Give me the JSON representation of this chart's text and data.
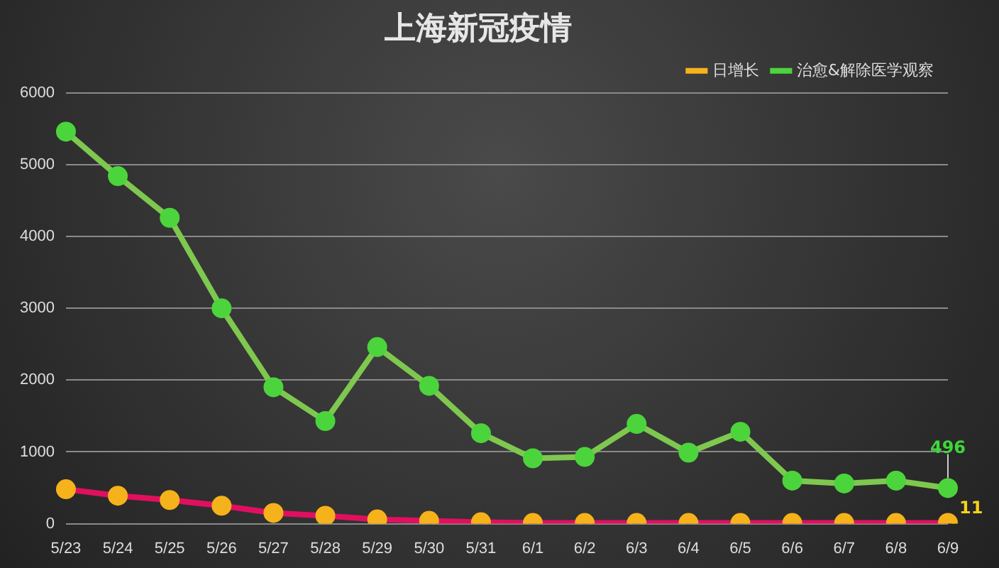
{
  "chart_data": {
    "type": "line",
    "title": "上海新冠疫情",
    "categories": [
      "5/23",
      "5/24",
      "5/25",
      "5/26",
      "5/27",
      "5/28",
      "5/29",
      "5/30",
      "5/31",
      "6/1",
      "6/2",
      "6/3",
      "6/4",
      "6/5",
      "6/6",
      "6/7",
      "6/8",
      "6/9"
    ],
    "series": [
      {
        "name": "日增长",
        "color": "#e0105f",
        "values": [
          480,
          390,
          330,
          250,
          150,
          110,
          60,
          40,
          20,
          10,
          10,
          10,
          10,
          10,
          10,
          10,
          10,
          11
        ],
        "value_labels": [
          null,
          null,
          null,
          null,
          null,
          null,
          null,
          null,
          null,
          null,
          null,
          null,
          null,
          null,
          null,
          null,
          null,
          "11"
        ]
      },
      {
        "name": "治愈&解除医学观察",
        "color": "#7ec850",
        "values": [
          5460,
          4840,
          4260,
          3000,
          1900,
          1430,
          2460,
          1920,
          1260,
          910,
          930,
          1390,
          990,
          1280,
          600,
          560,
          600,
          496
        ],
        "value_labels": [
          null,
          null,
          null,
          null,
          null,
          null,
          null,
          null,
          null,
          null,
          null,
          null,
          null,
          null,
          null,
          null,
          null,
          "496"
        ]
      }
    ],
    "ylim": [
      0,
      6000
    ],
    "yticks": [
      0,
      1000,
      2000,
      3000,
      4000,
      5000,
      6000
    ],
    "grid": "y",
    "legend": "top right",
    "marker": "circle",
    "line_style": "solid"
  }
}
